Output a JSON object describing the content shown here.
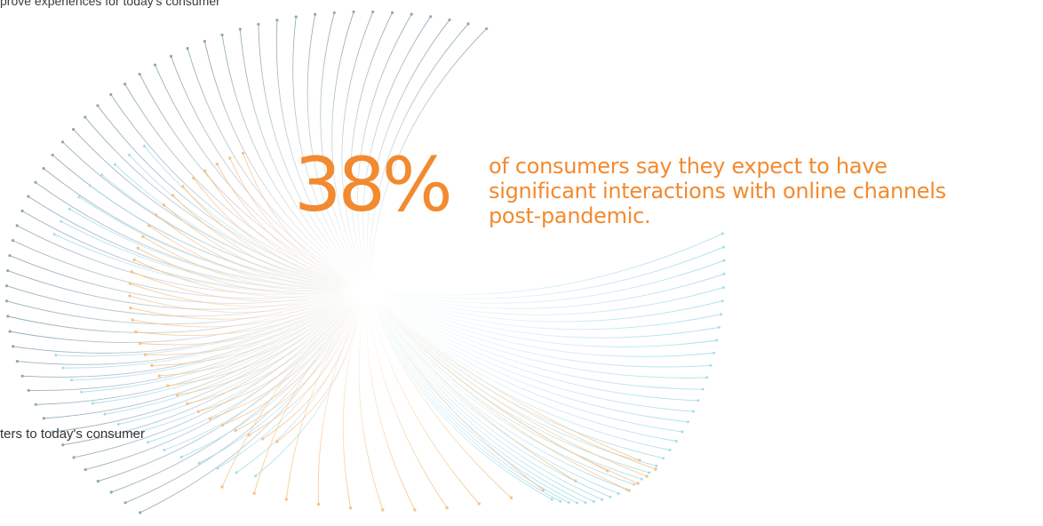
{
  "stat": {
    "value": "38%",
    "lines": [
      "of consumers say they expect to have",
      "significant interactions with online channels",
      "post-pandemic."
    ]
  },
  "captions": {
    "top": "prove experiences for today's consumer",
    "bottom": "ters to today's consumer"
  },
  "colors": {
    "accent": "#F28A2F",
    "line_slate": "#8FA8B4",
    "line_cyan": "#A6DCE8",
    "line_orange": "#F5C48A"
  },
  "icons": {
    "decoration": "radial-line-burst"
  }
}
